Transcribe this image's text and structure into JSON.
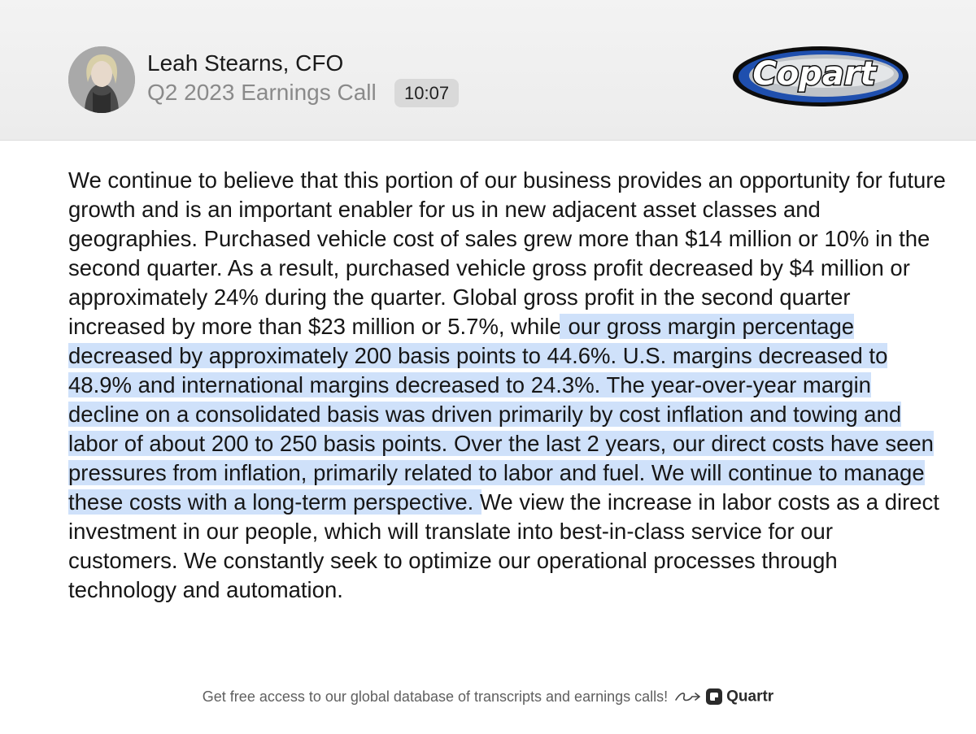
{
  "header": {
    "speaker_name": "Leah Stearns, CFO",
    "event_title": "Q2 2023 Earnings Call",
    "timestamp": "10:07",
    "company_logo_text": "Copart"
  },
  "transcript": {
    "before_highlight": "We continue to believe that this portion of our business provides an opportunity for future growth and is an important enabler for us in new adjacent asset classes and geographies. Purchased vehicle cost of sales grew more than $14 million or 10% in the second quarter. As a result, purchased vehicle gross profit decreased by $4 million or approximately 24% during the quarter. Global gross profit in the second quarter increased by more than $23 million or 5.7%, while ",
    "highlighted": "our gross margin percentage decreased by approximately 200 basis points to 44.6%. U.S. margins decreased to 48.9% and international margins decreased to 24.3%. The year-over-year margin decline on a consolidated basis was driven primarily by cost inflation and towing and labor of about 200 to 250 basis points. Over the last 2 years, our direct costs have seen pressures from inflation, primarily related to labor and fuel. We will continue to manage these costs with a long-term perspective.",
    "after_highlight": " We view the increase in labor costs as a direct investment in our people, which will translate into best-in-class service for our customers. We constantly seek to optimize our operational processes through technology and automation."
  },
  "footer": {
    "cta_text": "Get free access to our global database of transcripts and earnings calls!",
    "brand": "Quartr",
    "icons": [
      "curly-arrow-icon",
      "quartr-logo-icon"
    ]
  },
  "colors": {
    "highlight": "#cfe1fa",
    "header_bg": "#f0f0f0",
    "timestamp_bg": "#d9d9d9",
    "logo_blue": "#1f4fae"
  }
}
